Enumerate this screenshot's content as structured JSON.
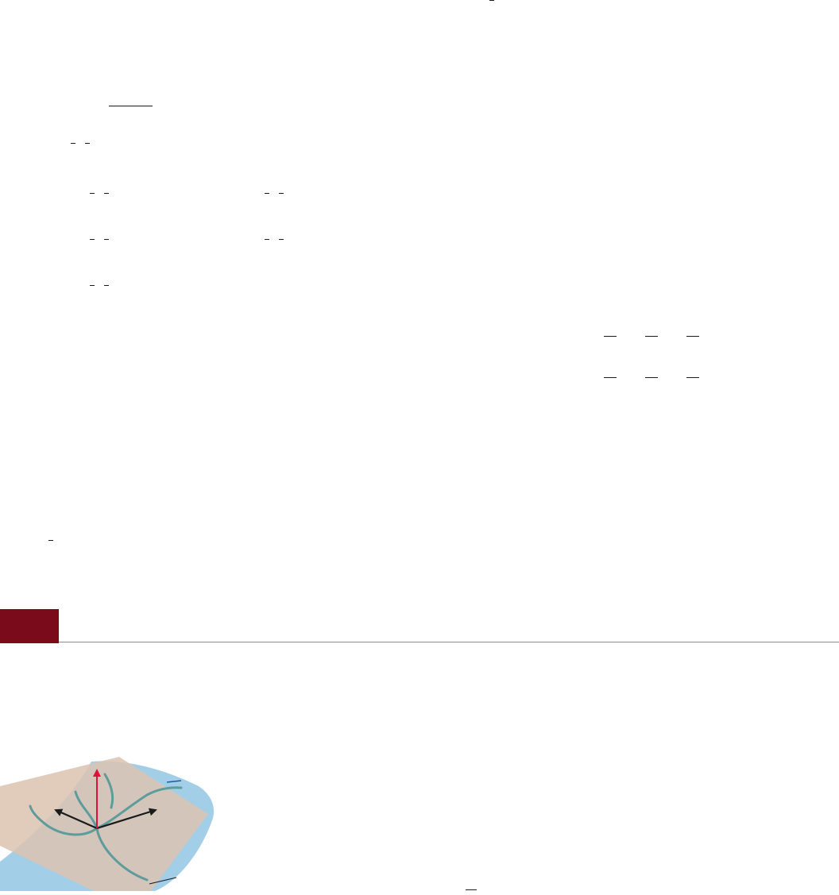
{
  "colors": {
    "section_marker": "#7a0b1b",
    "section_divider": "#8c8c8c",
    "fraction_rules": "#1a1a1a",
    "surface": "#9ecbe6",
    "tangent_plane": "#dcc3b0",
    "curves": "#5e9c9c",
    "normal_vector": "#e0103c",
    "tangent_vectors": "#1a1a1a",
    "label_leaders": "#1a5d9e"
  },
  "figure": {
    "icons": [
      "normal-vector-arrow",
      "tangent-vector-arrow",
      "curve-on-surface"
    ]
  }
}
